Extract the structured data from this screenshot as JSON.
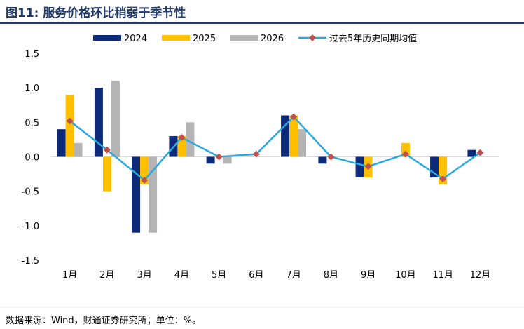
{
  "title": "图11: 服务价格环比稍弱于季节性",
  "source": "数据来源：Wind，财通证券研究所；单位：%。",
  "colors": {
    "s2024": "#0d2a78",
    "s2025": "#ffc000",
    "s2026": "#b4b4b4",
    "avg_line": "#29a8df",
    "avg_marker": "#c0504d",
    "title": "#1f3a6b"
  },
  "chart_data": {
    "type": "bar",
    "categories": [
      "1月",
      "2月",
      "3月",
      "4月",
      "5月",
      "6月",
      "7月",
      "8月",
      "9月",
      "10月",
      "11月",
      "12月"
    ],
    "series": [
      {
        "name": "2024",
        "type": "bar",
        "values": [
          0.4,
          1.0,
          -1.1,
          0.3,
          -0.1,
          0.0,
          0.6,
          -0.1,
          -0.3,
          0.0,
          -0.3,
          0.1
        ]
      },
      {
        "name": "2025",
        "type": "bar",
        "values": [
          0.9,
          -0.5,
          -0.4,
          0.3,
          0.0,
          0.0,
          0.6,
          0.0,
          -0.3,
          0.2,
          -0.4,
          null
        ]
      },
      {
        "name": "2026",
        "type": "bar",
        "values": [
          0.2,
          1.1,
          -1.1,
          0.5,
          -0.1,
          null,
          0.4,
          null,
          null,
          null,
          null,
          null
        ]
      },
      {
        "name": "过去5年历史同期均值",
        "type": "line",
        "values": [
          0.52,
          0.1,
          -0.34,
          0.28,
          0.0,
          0.04,
          0.58,
          0.0,
          -0.14,
          0.04,
          -0.32,
          0.06
        ]
      }
    ],
    "yticks": [
      "1.5",
      "1.0",
      "0.5",
      "0.0",
      "-0.5",
      "-1.0",
      "-1.5"
    ],
    "ylim": [
      -1.5,
      1.5
    ],
    "grid": false,
    "legend": "top"
  }
}
